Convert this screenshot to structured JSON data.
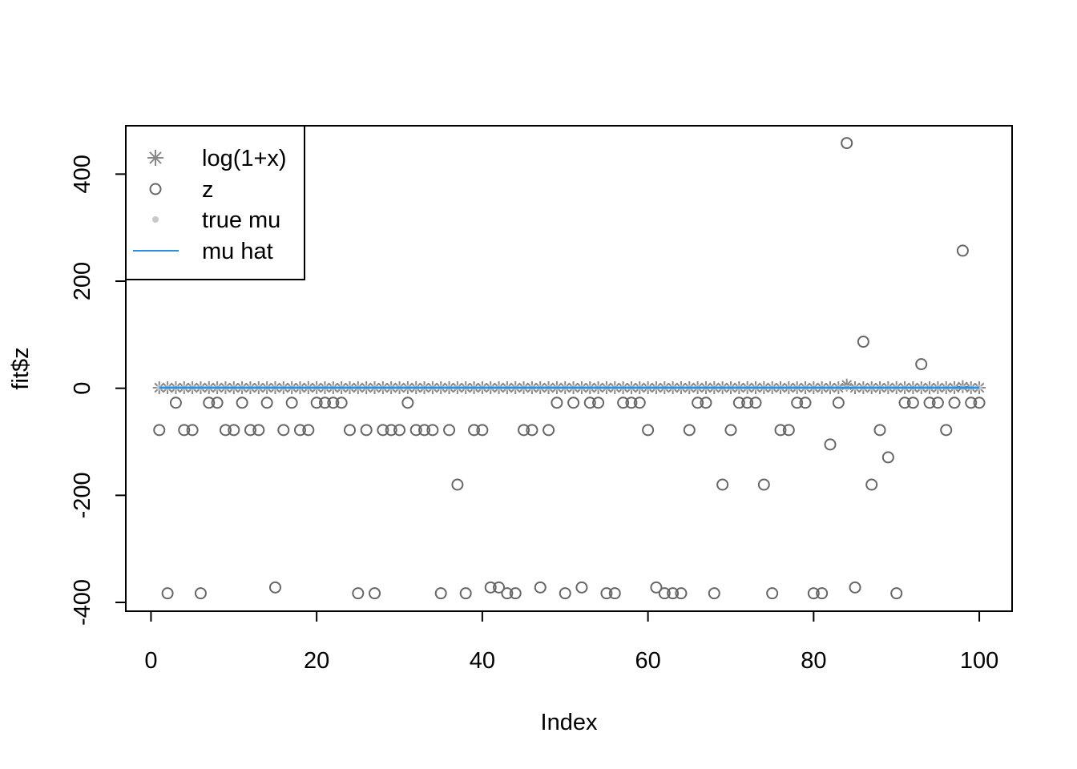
{
  "chart_data": {
    "type": "scatter",
    "title": "",
    "xlabel": "Index",
    "ylabel": "fit$z",
    "xlim": [
      -3.04,
      103.96
    ],
    "ylim": [
      -416.4,
      490.3
    ],
    "xticks": [
      0,
      20,
      40,
      60,
      80,
      100
    ],
    "xtick_labels": [
      "0",
      "20",
      "40",
      "60",
      "80",
      "100"
    ],
    "yticks": [
      -400,
      -200,
      0,
      200,
      400
    ],
    "ytick_labels": [
      "-400",
      "-200",
      "0",
      "200",
      "400"
    ],
    "grid": false,
    "legend_position": "top-left",
    "legend": [
      {
        "label": "log(1+x)",
        "symbol": "asterisk",
        "color": "#888888"
      },
      {
        "label": "z",
        "symbol": "open-circle",
        "color": "#666666"
      },
      {
        "label": "true mu",
        "symbol": "filled-dot",
        "color": "#c8c8c8"
      },
      {
        "label": "mu hat",
        "symbol": "line",
        "color": "#2f8fde"
      }
    ],
    "x": [
      1,
      2,
      3,
      4,
      5,
      6,
      7,
      8,
      9,
      10,
      11,
      12,
      13,
      14,
      15,
      16,
      17,
      18,
      19,
      20,
      21,
      22,
      23,
      24,
      25,
      26,
      27,
      28,
      29,
      30,
      31,
      32,
      33,
      34,
      35,
      36,
      37,
      38,
      39,
      40,
      41,
      42,
      43,
      44,
      45,
      46,
      47,
      48,
      49,
      50,
      51,
      52,
      53,
      54,
      55,
      56,
      57,
      58,
      59,
      60,
      61,
      62,
      63,
      64,
      65,
      66,
      67,
      68,
      69,
      70,
      71,
      72,
      73,
      74,
      75,
      76,
      77,
      78,
      79,
      80,
      81,
      82,
      83,
      84,
      85,
      86,
      87,
      88,
      89,
      90,
      91,
      92,
      93,
      94,
      95,
      96,
      97,
      98,
      99,
      100
    ],
    "series": [
      {
        "name": "log(1+x)",
        "color": "#888888",
        "values": [
          1,
          1,
          1,
          1,
          1,
          1,
          1,
          1,
          1,
          1,
          1,
          1,
          1,
          1,
          1,
          1,
          1,
          1,
          1,
          1,
          1,
          1,
          1,
          1,
          1,
          1,
          1,
          1,
          1,
          1,
          1,
          1,
          1,
          1,
          1,
          1,
          1,
          1,
          1,
          1,
          1,
          1,
          1,
          1,
          1,
          1,
          1,
          1,
          1,
          1,
          1,
          1,
          1,
          1,
          1,
          1,
          1,
          1,
          1,
          1,
          1,
          1,
          1,
          1,
          1,
          1,
          1,
          1,
          1,
          1,
          1,
          1,
          1,
          1,
          1,
          1,
          1,
          1,
          1,
          1,
          1,
          1,
          1,
          6,
          1,
          1,
          1,
          1,
          1,
          1,
          1,
          1,
          1,
          1,
          1,
          1,
          1,
          3,
          1,
          1
        ]
      },
      {
        "name": "z",
        "color": "#666666",
        "values": [
          -78,
          -383,
          -27,
          -78,
          -78,
          -383,
          -27,
          -27,
          -78,
          -78,
          -27,
          -78,
          -78,
          -27,
          -372,
          -78,
          -27,
          -78,
          -78,
          -27,
          -27,
          -27,
          -27,
          -78,
          -383,
          -78,
          -383,
          -78,
          -78,
          -78,
          -27,
          -78,
          -78,
          -78,
          -383,
          -78,
          -180,
          -383,
          -78,
          -78,
          -372,
          -372,
          -383,
          -383,
          -78,
          -78,
          -372,
          -78,
          -27,
          -383,
          -27,
          -372,
          -27,
          -27,
          -383,
          -383,
          -27,
          -27,
          -27,
          -78,
          -372,
          -383,
          -383,
          -383,
          -78,
          -27,
          -27,
          -383,
          -180,
          -78,
          -27,
          -27,
          -27,
          -180,
          -383,
          -78,
          -78,
          -27,
          -27,
          -383,
          -383,
          -105,
          -27,
          458,
          -372,
          87,
          -180,
          -78,
          -129,
          -383,
          -27,
          -27,
          45,
          -27,
          -27,
          -78,
          -27,
          257,
          -27,
          -27
        ]
      },
      {
        "name": "true mu",
        "color": "#c8c8c8",
        "values": [
          1,
          1,
          1,
          1,
          1,
          1,
          1,
          1,
          1,
          1,
          1,
          1,
          1,
          1,
          1,
          1,
          1,
          1,
          1,
          1,
          1,
          1,
          1,
          1,
          1,
          1,
          1,
          1,
          1,
          1,
          1,
          1,
          1,
          1,
          1,
          1,
          1,
          1,
          1,
          1,
          1,
          1,
          1,
          1,
          1,
          1,
          1,
          1,
          1,
          1,
          1,
          1,
          1,
          1,
          1,
          1,
          1,
          1,
          1,
          1,
          1,
          1,
          1,
          1,
          1,
          1,
          1,
          1,
          1,
          1,
          1,
          1,
          1,
          1,
          1,
          1,
          1,
          1,
          1,
          1,
          1,
          1,
          1,
          1,
          1,
          1,
          1,
          1,
          1,
          1,
          1,
          1,
          1,
          1,
          1,
          1,
          1,
          1,
          1,
          1
        ]
      },
      {
        "name": "mu hat",
        "color": "#2f8fde",
        "values": [
          1,
          1,
          1,
          1,
          1,
          1,
          1,
          1,
          1,
          1,
          1,
          1,
          1,
          1,
          1,
          1,
          1,
          1,
          1,
          1,
          1,
          1,
          1,
          1,
          1,
          1,
          1,
          1,
          1,
          1,
          1,
          1,
          1,
          1,
          1,
          1,
          1,
          1,
          1,
          1,
          1,
          1,
          1,
          1,
          1,
          1,
          1,
          1,
          1,
          1,
          1,
          1,
          1,
          1,
          1,
          1,
          1,
          1,
          1,
          1,
          1,
          1,
          1,
          1,
          1,
          1,
          1,
          1,
          1,
          1,
          1,
          1,
          1,
          1,
          1,
          1,
          1,
          1,
          1,
          1,
          1,
          1,
          1,
          1,
          1,
          1,
          1,
          1,
          1,
          1,
          1,
          1,
          1,
          1,
          1,
          1,
          1,
          1,
          1,
          1
        ]
      }
    ]
  }
}
